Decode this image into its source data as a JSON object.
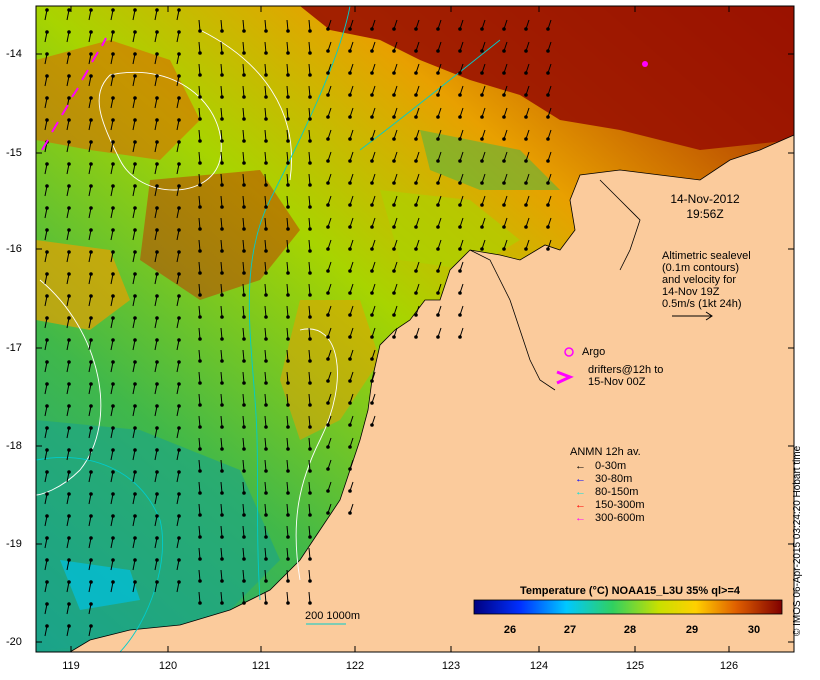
{
  "map": {
    "y_ticks": [
      "-14",
      "-15",
      "-16",
      "-17",
      "-18",
      "-19",
      "-20"
    ],
    "x_ticks": [
      "119",
      "120",
      "121",
      "122",
      "123",
      "124",
      "125",
      "126"
    ],
    "date_line1": "14-Nov-2012",
    "date_line2": "19:56Z",
    "alt_line1": "Altimetric sealevel",
    "alt_line2": "(0.1m contours)",
    "alt_line3": "and velocity for",
    "alt_line4": "14-Nov 19Z",
    "alt_line5": "0.5m/s (1kt 24h)",
    "argo_label": "Argo",
    "drifters_line1": "drifters@12h to",
    "drifters_line2": "15-Nov 00Z",
    "anmn_title": "ANMN 12h av.",
    "anmn_items": [
      {
        "label": "0-30m",
        "color": "#000000"
      },
      {
        "label": "30-80m",
        "color": "#0000ff"
      },
      {
        "label": "80-150m",
        "color": "#00e0e0"
      },
      {
        "label": "150-300m",
        "color": "#ff0000"
      },
      {
        "label": "300-600m",
        "color": "#ff00ff"
      }
    ],
    "colorbar_title": "Temperature (°C) NOAA15_L3U 35% ql>=4",
    "colorbar_ticks": [
      "26",
      "27",
      "28",
      "29",
      "30"
    ],
    "scale_label": "200  1000m",
    "credit": "© IMOS 06-Apr-2015 03:24:20 Hobart time",
    "colors": {
      "land": "#fbcb9c",
      "warm": "#9a1200",
      "mid": "#e8a000",
      "cool": "#2bb84a",
      "cold": "#13a38a"
    }
  }
}
